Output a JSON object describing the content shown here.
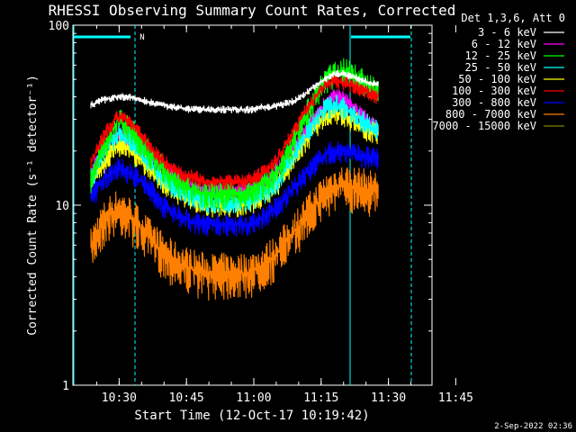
{
  "chart_data": {
    "type": "line",
    "title": "RHESSI Observing Summary Count Rates, Corrected",
    "xlabel": "Start Time (12-Oct-17 10:19:42)",
    "ylabel": "Corrected Count Rate (s⁻¹ detector⁻¹)",
    "yscale": "log",
    "ylim": [
      1,
      100
    ],
    "xlim_minutes": [
      0,
      80
    ],
    "x_ticks": [
      "10:30",
      "10:45",
      "11:00",
      "11:15",
      "11:30",
      "11:45"
    ],
    "y_ticks": [
      "1",
      "10",
      "100"
    ],
    "legend_title": "Det 1,3,6, Att 0",
    "legend_position": "right",
    "footer": "2-Sep-2022 02:36",
    "annotation_label": "N",
    "x_minutes": [
      4,
      6,
      8,
      10,
      12,
      14,
      16,
      18,
      20,
      22,
      24,
      26,
      28,
      30,
      32,
      34,
      36,
      38,
      40,
      42,
      44,
      46,
      48,
      50,
      52,
      54,
      56,
      58,
      60,
      62,
      64,
      66,
      68
    ],
    "series": [
      {
        "name": "3 - 6 keV",
        "color": "#ffffff",
        "values": [
          36,
          38,
          39,
          40,
          40,
          39,
          38,
          37,
          36,
          35,
          35,
          34,
          34,
          34,
          34,
          34,
          34,
          34,
          34,
          35,
          35,
          36,
          37,
          39,
          42,
          46,
          50,
          53,
          54,
          52,
          50,
          48,
          47
        ]
      },
      {
        "name": "6 - 12 keV",
        "color": "#ff00ff",
        "values": [
          15,
          19,
          22,
          25,
          24,
          22,
          20,
          18,
          16,
          15,
          14,
          13,
          12.5,
          12,
          12,
          12,
          12,
          12,
          12.5,
          13,
          14,
          16,
          18,
          22,
          26,
          31,
          36,
          40,
          39,
          36,
          32,
          29,
          26
        ]
      },
      {
        "name": "12 - 25 keV",
        "color": "#00ff00",
        "values": [
          14,
          19,
          24,
          30,
          28,
          24,
          21,
          18,
          16,
          14,
          13,
          12.5,
          12,
          11.5,
          11.5,
          11.5,
          11.5,
          11.5,
          12,
          13,
          14,
          16,
          20,
          25,
          32,
          40,
          48,
          54,
          56,
          54,
          50,
          46,
          42
        ]
      },
      {
        "name": "25 - 50 keV",
        "color": "#00ffff",
        "values": [
          14,
          18,
          22,
          25,
          24,
          21,
          18,
          16,
          14,
          13,
          12,
          11.5,
          11,
          10.5,
          10.5,
          10.5,
          10.5,
          10.5,
          11,
          11.5,
          12.5,
          14,
          17,
          20,
          25,
          30,
          34,
          36,
          35,
          33,
          30,
          28,
          26
        ]
      },
      {
        "name": "50 - 100 keV",
        "color": "#ffff00",
        "values": [
          13,
          16,
          19,
          22,
          21,
          19,
          17,
          15,
          13.5,
          12.5,
          11.5,
          11,
          10.5,
          10,
          10,
          10,
          10,
          10,
          10.5,
          11,
          12,
          13.5,
          16,
          19,
          23,
          27,
          31,
          33,
          32,
          30,
          28,
          26,
          25
        ]
      },
      {
        "name": "100 - 300 keV",
        "color": "#ff0000",
        "values": [
          17,
          22,
          27,
          31,
          30,
          27,
          23,
          20,
          18,
          16,
          15,
          14.5,
          14,
          13.5,
          13.5,
          13.5,
          13.5,
          13.5,
          14,
          15,
          16,
          19,
          23,
          28,
          34,
          40,
          46,
          49,
          48,
          46,
          44,
          42,
          40
        ]
      },
      {
        "name": "300 - 800 keV",
        "color": "#0000ff",
        "values": [
          11,
          13,
          15,
          16,
          15.5,
          14.5,
          13,
          11.5,
          10,
          9.2,
          8.6,
          8.2,
          8,
          7.8,
          7.8,
          7.8,
          7.8,
          7.8,
          8,
          8.5,
          9.2,
          10,
          11.5,
          13,
          15,
          17,
          19,
          20,
          20,
          19.5,
          19,
          18.5,
          18
        ]
      },
      {
        "name": "800 - 7000 keV",
        "color": "#ff8000",
        "values": [
          5.8,
          7.5,
          8.8,
          9.5,
          9,
          8,
          7,
          6.2,
          5.5,
          5,
          4.7,
          4.5,
          4.3,
          4.2,
          4.2,
          4.2,
          4.2,
          4.2,
          4.3,
          4.6,
          5,
          5.6,
          6.5,
          7.5,
          8.8,
          10,
          11.5,
          12.5,
          13,
          12.8,
          12.5,
          12.2,
          12
        ]
      },
      {
        "name": "7000 - 15000 keV",
        "color": "#808000",
        "values": []
      }
    ]
  }
}
